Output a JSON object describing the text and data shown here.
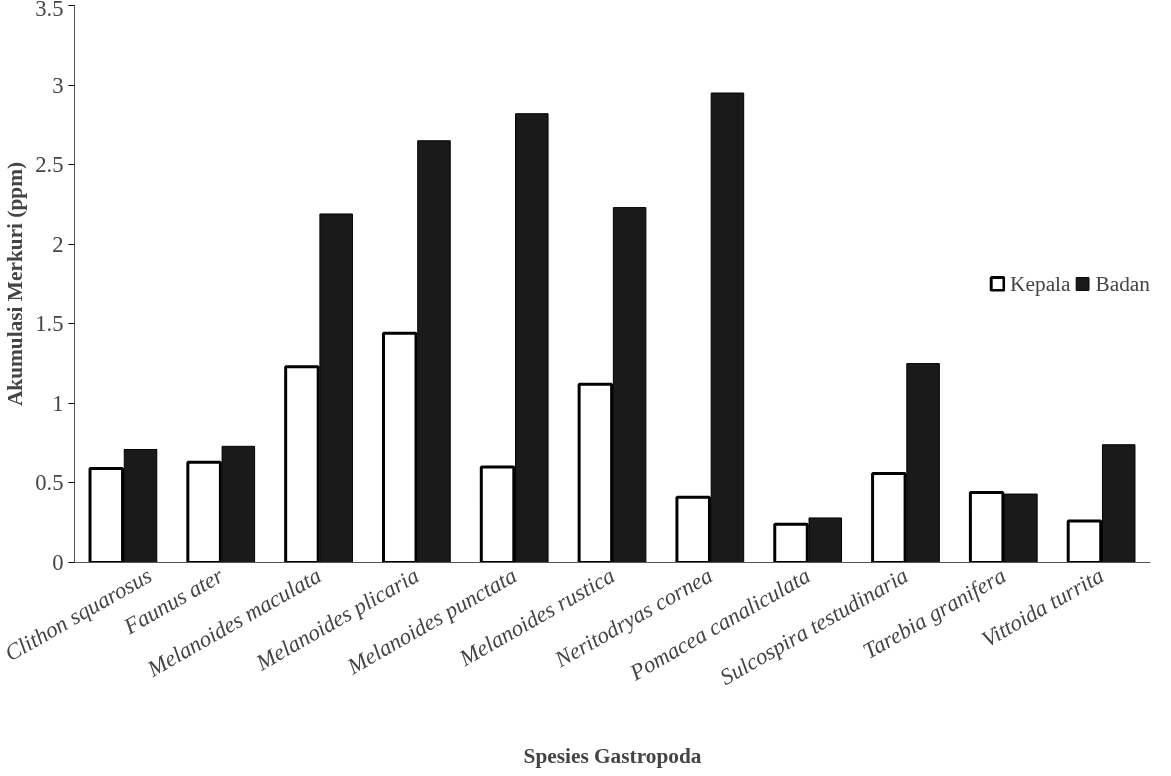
{
  "chart_data": {
    "type": "bar",
    "xlabel": "Spesies Gastropoda",
    "ylabel": "Akumulasi Merkuri (ppm)",
    "categories": [
      "Clithon squarosus",
      "Faunus ater",
      "Melanoides maculata",
      "Melanoides plicaria",
      "Melanoides punctata",
      "Melanoides rustica",
      "Neritodryas cornea",
      "Pomacea canaliculata",
      "Sulcospira testudinaria",
      "Tarebia granifera",
      "Vittoida turrita"
    ],
    "series": [
      {
        "name": "Kepala",
        "color": "#ffffff",
        "values": [
          0.59,
          0.63,
          1.23,
          1.44,
          0.6,
          1.12,
          0.41,
          0.24,
          0.56,
          0.44,
          0.26
        ]
      },
      {
        "name": "Badan",
        "color": "#1a1a1a",
        "values": [
          0.71,
          0.73,
          2.19,
          2.65,
          2.82,
          2.23,
          2.95,
          0.28,
          1.25,
          0.43,
          0.74
        ]
      }
    ],
    "ylim": [
      0,
      3.5
    ],
    "yticks": [
      0,
      0.5,
      1,
      1.5,
      2,
      2.5,
      3,
      3.5
    ],
    "grid": false,
    "legend": "right"
  }
}
